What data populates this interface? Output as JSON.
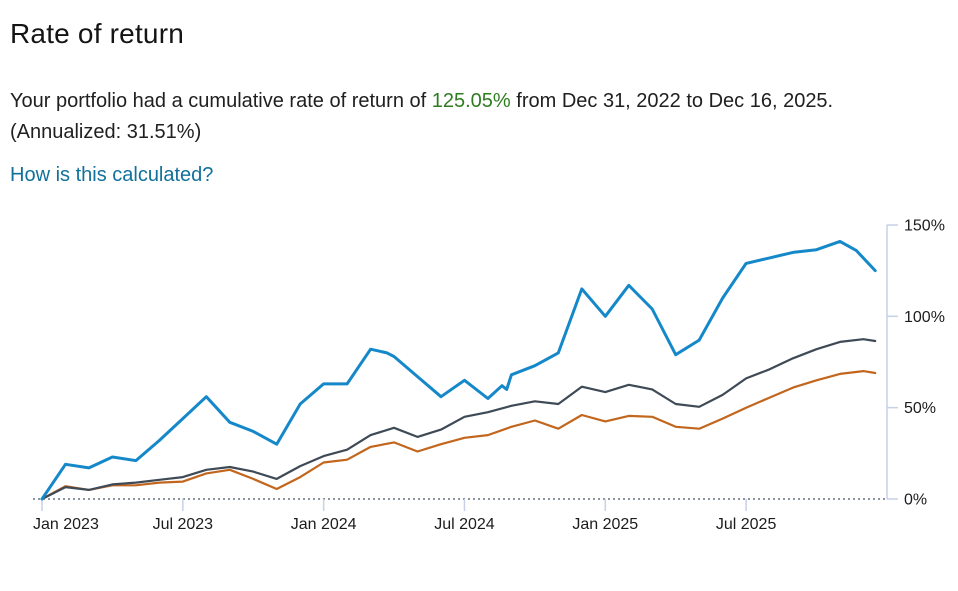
{
  "header": {
    "title": "Rate of return"
  },
  "summary": {
    "before": "Your portfolio had a cumulative rate of return of ",
    "return_value": "125.05%",
    "after": " from Dec 31, 2022 to Dec 16, 2025. (Annualized: 31.51%)",
    "link_label": "How is this calculated?"
  },
  "colors": {
    "highlight_green": "#2f7d1f",
    "link_blue": "#11719b",
    "axis": "#c6d1e7",
    "zero_dotted": "#8b939c",
    "tick_text": "#1c1c1e",
    "series_blue": "#1588c9",
    "series_dark_gray": "#3f4a57",
    "series_orange": "#c2661d"
  },
  "chart_data": {
    "type": "line",
    "title": "Rate of return over time",
    "date_range": {
      "start": "Dec 31, 2022",
      "end": "Dec 16, 2025"
    },
    "x_axis": {
      "unit": "months since Dec 31, 2022",
      "tick_months": [
        0,
        6,
        12,
        18,
        24,
        30
      ],
      "tick_labels": [
        "Jan 2023",
        "Jul 2023",
        "Jan 2024",
        "Jul 2024",
        "Jan 2025",
        "Jul 2025"
      ]
    },
    "y_axis": {
      "position": "right",
      "ticks": [
        0,
        50,
        100,
        150
      ],
      "tick_labels": [
        "0%",
        "50%",
        "100%",
        "150%"
      ],
      "ylim": [
        0,
        150
      ],
      "unit": "percent cumulative return"
    },
    "zero_line_style": "dotted",
    "grid": "off",
    "legend": "none",
    "series": [
      {
        "name": "orange",
        "color": "#c2661d",
        "width": 2.2,
        "points": [
          [
            0,
            0
          ],
          [
            1,
            7
          ],
          [
            2,
            5
          ],
          [
            3,
            7.5
          ],
          [
            4,
            7.5
          ],
          [
            5,
            9
          ],
          [
            6,
            9.5
          ],
          [
            7,
            14
          ],
          [
            8,
            16
          ],
          [
            9,
            11
          ],
          [
            10,
            5.5
          ],
          [
            11,
            12
          ],
          [
            12,
            20
          ],
          [
            13,
            21.5
          ],
          [
            14,
            28.5
          ],
          [
            15,
            31
          ],
          [
            16,
            26
          ],
          [
            17,
            30
          ],
          [
            18,
            33.5
          ],
          [
            19,
            35
          ],
          [
            20,
            39.5
          ],
          [
            21,
            43
          ],
          [
            22,
            38.5
          ],
          [
            23,
            46
          ],
          [
            24,
            42.5
          ],
          [
            25,
            45.5
          ],
          [
            26,
            45
          ],
          [
            27,
            39.5
          ],
          [
            28,
            38.5
          ],
          [
            29,
            44
          ],
          [
            30,
            50
          ],
          [
            31,
            55.5
          ],
          [
            32,
            61
          ],
          [
            33,
            65
          ],
          [
            34,
            68.5
          ],
          [
            35,
            70
          ],
          [
            35.5,
            69
          ]
        ]
      },
      {
        "name": "dark-gray",
        "color": "#3f4a57",
        "width": 2.2,
        "points": [
          [
            0,
            0
          ],
          [
            1,
            6.5
          ],
          [
            2,
            5
          ],
          [
            3,
            8
          ],
          [
            4,
            9
          ],
          [
            5,
            10.5
          ],
          [
            6,
            12
          ],
          [
            7,
            16
          ],
          [
            8,
            17.5
          ],
          [
            9,
            15
          ],
          [
            10,
            11
          ],
          [
            11,
            18
          ],
          [
            12,
            23.5
          ],
          [
            13,
            27
          ],
          [
            14,
            35
          ],
          [
            15,
            39
          ],
          [
            16,
            34
          ],
          [
            17,
            38
          ],
          [
            18,
            45
          ],
          [
            19,
            47.5
          ],
          [
            20,
            51
          ],
          [
            21,
            53.5
          ],
          [
            22,
            52
          ],
          [
            23,
            61.5
          ],
          [
            24,
            58.5
          ],
          [
            25,
            62.5
          ],
          [
            26,
            60
          ],
          [
            27,
            52
          ],
          [
            28,
            50.5
          ],
          [
            29,
            57
          ],
          [
            30,
            66
          ],
          [
            31,
            71
          ],
          [
            32,
            77
          ],
          [
            33,
            82
          ],
          [
            34,
            86
          ],
          [
            35,
            87.5
          ],
          [
            35.5,
            86.5
          ]
        ]
      },
      {
        "name": "portfolio-blue",
        "color": "#1588c9",
        "width": 3,
        "final_value_pct": 125.05,
        "points": [
          [
            0,
            0
          ],
          [
            1,
            19
          ],
          [
            2,
            17
          ],
          [
            3,
            23
          ],
          [
            4,
            21
          ],
          [
            5,
            32
          ],
          [
            6,
            44
          ],
          [
            7,
            56
          ],
          [
            8,
            42
          ],
          [
            9,
            37
          ],
          [
            10,
            30
          ],
          [
            11,
            52
          ],
          [
            12,
            63
          ],
          [
            13,
            63
          ],
          [
            14,
            82
          ],
          [
            14.7,
            80
          ],
          [
            15,
            78
          ],
          [
            16,
            67
          ],
          [
            17,
            56
          ],
          [
            18,
            65
          ],
          [
            19,
            55
          ],
          [
            19.6,
            62
          ],
          [
            19.8,
            60
          ],
          [
            20,
            68
          ],
          [
            21,
            73
          ],
          [
            22,
            80
          ],
          [
            23,
            115
          ],
          [
            24,
            100
          ],
          [
            25,
            117
          ],
          [
            26,
            104
          ],
          [
            27,
            79
          ],
          [
            28,
            87
          ],
          [
            29,
            110
          ],
          [
            30,
            129
          ],
          [
            31,
            132
          ],
          [
            32,
            135
          ],
          [
            33,
            136.5
          ],
          [
            34,
            141
          ],
          [
            34.7,
            136
          ],
          [
            35.5,
            125.05
          ]
        ]
      }
    ]
  }
}
